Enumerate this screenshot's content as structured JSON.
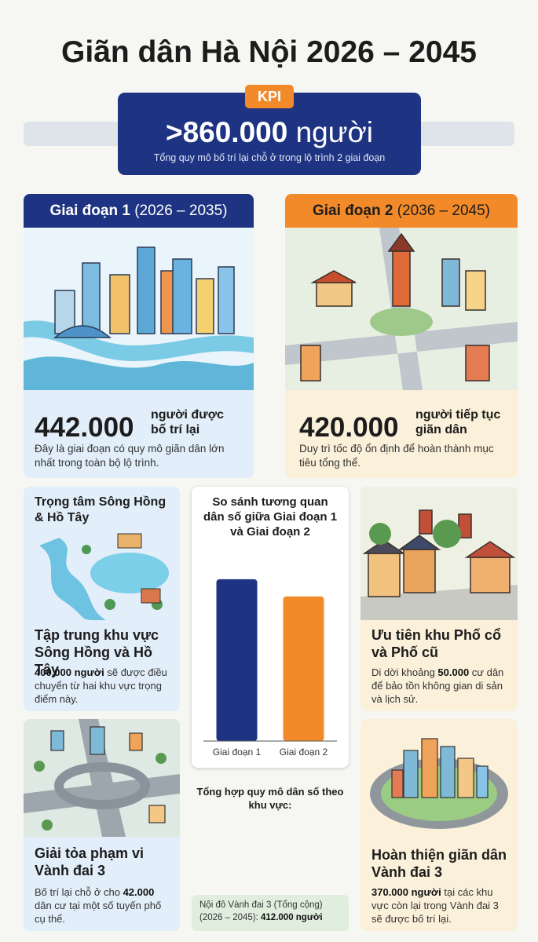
{
  "header": {
    "title": "Giãn dân Hà Nội 2026 – 2045"
  },
  "kpi": {
    "tag": "KPI",
    "value": ">860.000",
    "unit": "người",
    "caption": "Tổng quy mô bố trí lại chỗ ở trong lộ trình 2 giai đoạn"
  },
  "phases": [
    {
      "title": "Giai đoạn 1",
      "period": "(2026 – 2035)",
      "number": "442.000",
      "number_label": "người được bố trí lại",
      "text": "Đây là giai đoạn có quy mô giãn dân lớn nhất trong toàn bộ lộ trình."
    },
    {
      "title": "Giai đoạn 2",
      "period": "(2036 – 2045)",
      "number": "420.000",
      "number_label": "người tiếp tục giãn dân",
      "text": "Duy trì tốc độ ổn định để hoàn thành mục tiêu tổng thể."
    }
  ],
  "cards": [
    {
      "heading": "Trọng tâm Sông Hồng & Hồ Tây",
      "title": "Tập trung khu vực Sông Hồng và Hồ Tây",
      "body": [
        {
          "text": "400.000 người",
          "bold": true
        },
        {
          "text": " sẽ được điều chuyển từ hai khu vực trọng điểm này.",
          "bold": false
        }
      ]
    },
    {
      "title": "Ưu tiên khu Phố cổ và Phố cũ",
      "body": [
        {
          "text": "Di dời khoảng ",
          "bold": false
        },
        {
          "text": "50.000",
          "bold": true
        },
        {
          "text": " cư dân để bảo tồn không gian di sản và lịch sử.",
          "bold": false
        }
      ]
    },
    {
      "title": "Giải tỏa phạm vi Vành đai 3",
      "body": [
        {
          "text": "Bố trí lại chỗ ở cho ",
          "bold": false
        },
        {
          "text": "42.000",
          "bold": true
        },
        {
          "text": " dân cư tại một số tuyến phố cụ thể.",
          "bold": false
        }
      ]
    },
    {
      "title": "Hoàn thiện giãn dân Vành đai 3",
      "body": [
        {
          "text": "370.000 người",
          "bold": true
        },
        {
          "text": " tại các khu vực còn lại trong Vành đai 3 sẽ được bố trí lại.",
          "bold": false
        }
      ]
    }
  ],
  "summary": {
    "title": "Tổng hợp quy mô dân số theo khu vực:",
    "box": [
      {
        "text": "Nội đô Vành đai 3 (Tổng cộng) (2026 – 2045): ",
        "bold": false
      },
      {
        "text": "412.000 người",
        "bold": true
      }
    ]
  },
  "chart_data": {
    "type": "bar",
    "title": "So sánh tương quan dân số giữa Giai đoạn 1 và Giai đoạn 2",
    "categories": [
      "Giai đoạn 1",
      "Giai đoạn 2"
    ],
    "values": [
      442000,
      420000
    ],
    "colors": [
      "#1e3382",
      "#f28a2a"
    ],
    "ylim": [
      235000,
      480000
    ]
  }
}
